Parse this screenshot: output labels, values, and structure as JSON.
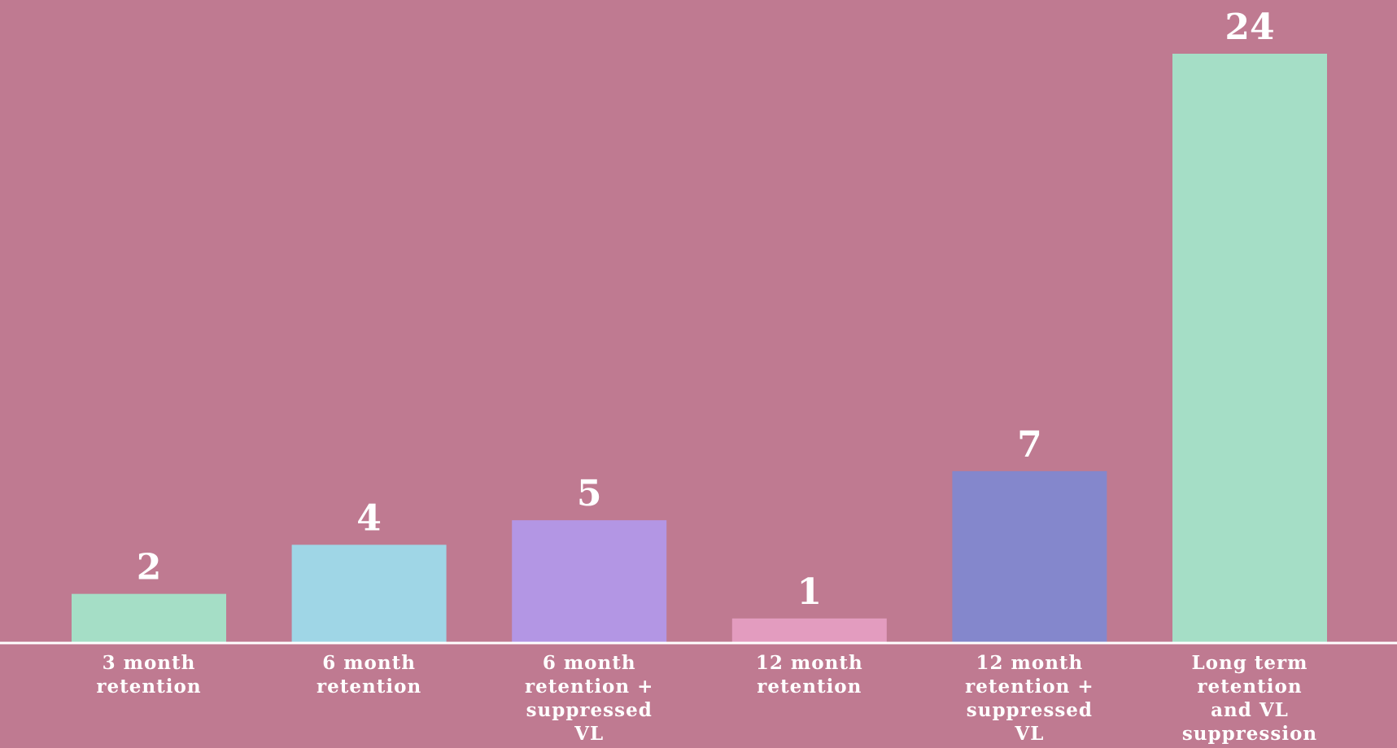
{
  "chart_data": {
    "type": "bar",
    "categories": [
      [
        "3 month",
        "retention"
      ],
      [
        "6 month",
        "retention"
      ],
      [
        "6 month",
        "retention +",
        "suppressed",
        "VL"
      ],
      [
        "12 month",
        "retention"
      ],
      [
        "12 month",
        "retention +",
        "suppressed",
        "VL"
      ],
      [
        "Long term",
        "retention",
        "and VL",
        "suppression"
      ]
    ],
    "values": [
      2,
      4,
      5,
      1,
      7,
      24
    ],
    "colors": [
      "#a5dec6",
      "#9fd6e6",
      "#b396e4",
      "#e39cbf",
      "#8487cc",
      "#a5dec6"
    ],
    "ylim": [
      0,
      24
    ],
    "grid": false,
    "legend": "none",
    "background": "#bf7a91",
    "axis_color": "#ffffff"
  }
}
